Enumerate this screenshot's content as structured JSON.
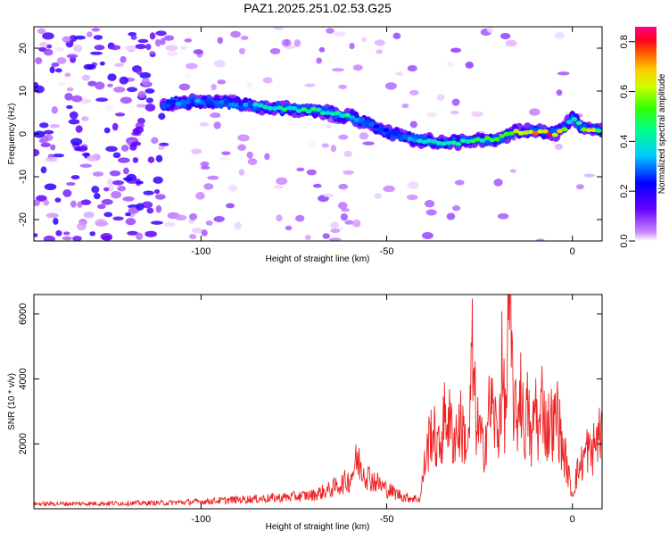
{
  "chart_data": [
    {
      "type": "heatmap",
      "title": "PAZ1.2025.251.02.53.G25",
      "xlabel": "Height of straight line (km)",
      "ylabel": "Frequency (Hz)",
      "xlim": [
        -145,
        8
      ],
      "ylim": [
        -25,
        25
      ],
      "xticks": [
        -100,
        -50,
        0
      ],
      "yticks": [
        -20,
        -10,
        0,
        10,
        20
      ],
      "colorbar": {
        "label": "Normalized spectral amplitude",
        "range": [
          0,
          0.86
        ],
        "ticks": [
          0,
          0.2,
          0.4,
          0.6,
          0.8
        ],
        "colormap": "rainbow (white-violet-blue-cyan-green-yellow-red-magenta)"
      },
      "ridge": {
        "x": [
          -110,
          -100,
          -90,
          -80,
          -70,
          -60,
          -55,
          -50,
          -45,
          -40,
          -35,
          -30,
          -25,
          -20,
          -15,
          -10,
          -5,
          -2,
          0,
          3,
          8
        ],
        "freq": [
          7,
          7.5,
          7,
          6,
          5.5,
          4,
          2.5,
          0.5,
          -1,
          -1.5,
          -2,
          -2,
          -1.5,
          -1,
          0.5,
          0.5,
          0,
          1.5,
          4,
          1,
          1
        ],
        "amplitude": [
          0.3,
          0.35,
          0.3,
          0.45,
          0.5,
          0.45,
          0.3,
          0.25,
          0.3,
          0.45,
          0.4,
          0.45,
          0.5,
          0.55,
          0.65,
          0.75,
          0.8,
          0.6,
          0.4,
          0.7,
          0.55
        ]
      }
    },
    {
      "type": "line",
      "xlabel": "Height of straight line (km)",
      "ylabel": "SNR (10 * v/v)",
      "xlim": [
        -145,
        8
      ],
      "ylim": [
        0,
        6600
      ],
      "xticks": [
        -100,
        -50,
        0
      ],
      "yticks": [
        2000,
        4000,
        6000
      ],
      "color": "#ee2222",
      "series": [
        {
          "x": [
            -145,
            -130,
            -120,
            -110,
            -100,
            -90,
            -80,
            -70,
            -65,
            -60,
            -58,
            -55,
            -50,
            -45,
            -41,
            -40,
            -38,
            -36,
            -34,
            -32,
            -30,
            -28,
            -27,
            -26,
            -24,
            -22,
            -20,
            -19,
            -18,
            -17,
            -16,
            -15,
            -14,
            -13,
            -12,
            -11,
            -10,
            -9,
            -8,
            -7,
            -6,
            -5,
            -4,
            -3,
            -2,
            -1,
            0,
            1,
            2,
            3,
            4,
            5,
            6,
            7,
            8
          ],
          "values": [
            150,
            160,
            170,
            180,
            220,
            280,
            330,
            420,
            600,
            900,
            1500,
            1000,
            600,
            350,
            300,
            1200,
            2500,
            1800,
            3000,
            2200,
            2600,
            1800,
            4700,
            2800,
            1800,
            3300,
            2200,
            4200,
            2700,
            6500,
            3600,
            2500,
            4000,
            2300,
            3100,
            1800,
            3400,
            2200,
            3600,
            2300,
            2800,
            2500,
            3000,
            2000,
            1600,
            1000,
            400,
            1000,
            1300,
            1500,
            1900,
            1600,
            2000,
            2200,
            2400
          ]
        }
      ]
    }
  ]
}
